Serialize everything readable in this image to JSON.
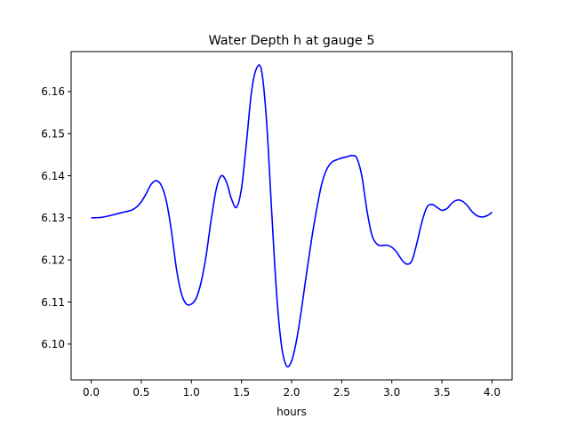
{
  "chart_data": {
    "type": "line",
    "title": "Water Depth h at gauge 5",
    "xlabel": "hours",
    "ylabel": "",
    "xlim": [
      -0.2,
      4.2
    ],
    "ylim": [
      6.0915,
      6.1695
    ],
    "xticks": [
      0.0,
      0.5,
      1.0,
      1.5,
      2.0,
      2.5,
      3.0,
      3.5,
      4.0
    ],
    "xtick_labels": [
      "0.0",
      "0.5",
      "1.0",
      "1.5",
      "2.0",
      "2.5",
      "3.0",
      "3.5",
      "4.0"
    ],
    "yticks": [
      6.1,
      6.11,
      6.12,
      6.13,
      6.14,
      6.15,
      6.16
    ],
    "ytick_labels": [
      "6.10",
      "6.11",
      "6.12",
      "6.13",
      "6.14",
      "6.15",
      "6.16"
    ],
    "grid": false,
    "legend": false,
    "series": [
      {
        "name": "",
        "color": "#0000ff",
        "x": [
          0.0,
          0.1,
          0.2,
          0.3,
          0.4,
          0.45,
          0.5,
          0.55,
          0.6,
          0.65,
          0.7,
          0.75,
          0.8,
          0.85,
          0.9,
          0.95,
          1.0,
          1.05,
          1.1,
          1.15,
          1.2,
          1.25,
          1.3,
          1.35,
          1.4,
          1.45,
          1.5,
          1.55,
          1.6,
          1.65,
          1.7,
          1.75,
          1.8,
          1.85,
          1.9,
          1.95,
          2.0,
          2.05,
          2.1,
          2.15,
          2.2,
          2.25,
          2.3,
          2.35,
          2.4,
          2.45,
          2.5,
          2.55,
          2.6,
          2.65,
          2.7,
          2.75,
          2.8,
          2.85,
          2.9,
          2.95,
          3.0,
          3.05,
          3.1,
          3.15,
          3.2,
          3.25,
          3.3,
          3.35,
          3.4,
          3.45,
          3.5,
          3.55,
          3.6,
          3.65,
          3.7,
          3.75,
          3.8,
          3.85,
          3.9,
          3.95,
          4.0
        ],
        "y": [
          6.13,
          6.1301,
          6.1306,
          6.1312,
          6.1318,
          6.1325,
          6.1338,
          6.1358,
          6.138,
          6.1388,
          6.1377,
          6.134,
          6.127,
          6.118,
          6.112,
          6.1095,
          6.1095,
          6.111,
          6.115,
          6.1215,
          6.13,
          6.137,
          6.14,
          6.1385,
          6.1345,
          6.1325,
          6.137,
          6.148,
          6.16,
          6.1655,
          6.165,
          6.153,
          6.132,
          6.112,
          6.0995,
          6.0948,
          6.096,
          6.101,
          6.1085,
          6.117,
          6.125,
          6.132,
          6.138,
          6.1415,
          6.1432,
          6.1438,
          6.1442,
          6.1445,
          6.1448,
          6.1442,
          6.14,
          6.132,
          6.126,
          6.1238,
          6.1234,
          6.1235,
          6.123,
          6.1218,
          6.12,
          6.119,
          6.1198,
          6.124,
          6.129,
          6.1325,
          6.1332,
          6.1325,
          6.1318,
          6.1322,
          6.1335,
          6.1342,
          6.134,
          6.133,
          6.1315,
          6.1305,
          6.1302,
          6.1305,
          6.1313
        ]
      }
    ]
  }
}
